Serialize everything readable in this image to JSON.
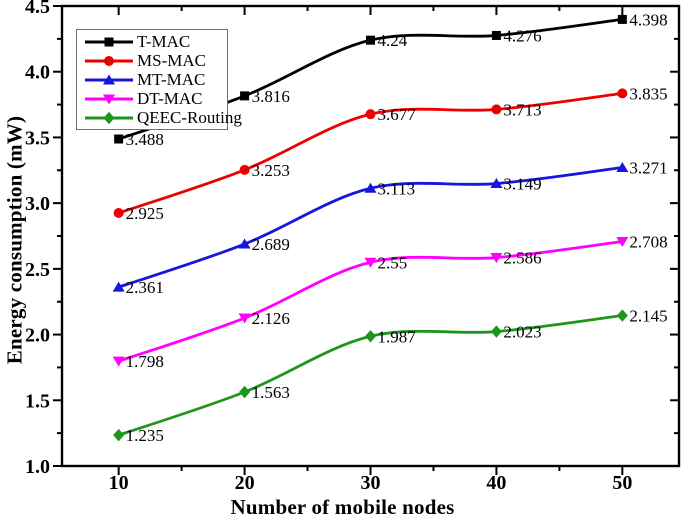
{
  "figure": {
    "background": "#ffffff"
  },
  "chart_data": {
    "type": "line",
    "title": "",
    "xlabel": "Number of mobile nodes",
    "ylabel": "Energy consumption (mW)",
    "x": [
      10,
      20,
      30,
      40,
      50
    ],
    "x_tick_labels": [
      "10",
      "20",
      "30",
      "40",
      "50"
    ],
    "x_minor_ticks": [
      15,
      25,
      35,
      45
    ],
    "y_ticks": [
      1.0,
      1.5,
      2.0,
      2.5,
      3.0,
      3.5,
      4.0,
      4.5
    ],
    "y_tick_labels": [
      "1.0",
      "1.5",
      "2.0",
      "2.5",
      "3.0",
      "3.5",
      "4.0",
      "4.5"
    ],
    "y_minor_ticks": [
      1.25,
      1.75,
      2.25,
      2.75,
      3.25,
      3.75,
      4.25
    ],
    "xlim": [
      5.5,
      54.5
    ],
    "ylim": [
      1.0,
      4.5
    ],
    "grid": false,
    "legend_position": "top-left",
    "curve_style": "smooth-spline",
    "axis_color": "#000000",
    "label_color": "#000000",
    "series": [
      {
        "name": "T-MAC",
        "color": "#000000",
        "marker": "square",
        "values": [
          3.488,
          3.816,
          4.24,
          4.276,
          4.398
        ],
        "point_labels": [
          "3.488",
          "3.816",
          "4.24",
          "4.276",
          "4.398"
        ]
      },
      {
        "name": "MS-MAC",
        "color": "#ee0000",
        "marker": "circle",
        "values": [
          2.925,
          3.253,
          3.677,
          3.713,
          3.835
        ],
        "point_labels": [
          "2.925",
          "3.253",
          "3.677",
          "3.713",
          "3.835"
        ]
      },
      {
        "name": "MT-MAC",
        "color": "#1616dd",
        "marker": "triangle-up",
        "values": [
          2.361,
          2.689,
          3.113,
          3.149,
          3.271
        ],
        "point_labels": [
          "2.361",
          "2.689",
          "3.113",
          "3.149",
          "3.271"
        ]
      },
      {
        "name": "DT-MAC",
        "color": "#ff00ff",
        "marker": "triangle-down",
        "values": [
          1.798,
          2.126,
          2.55,
          2.586,
          2.708
        ],
        "point_labels": [
          "1.798",
          "2.126",
          "2.55",
          "2.586",
          "2.708"
        ]
      },
      {
        "name": "QEEC-Routing",
        "color": "#1e961e",
        "marker": "diamond",
        "values": [
          1.235,
          1.563,
          1.987,
          2.023,
          2.145
        ],
        "point_labels": [
          "1.235",
          "1.563",
          "1.987",
          "2.023",
          "2.145"
        ]
      }
    ]
  }
}
